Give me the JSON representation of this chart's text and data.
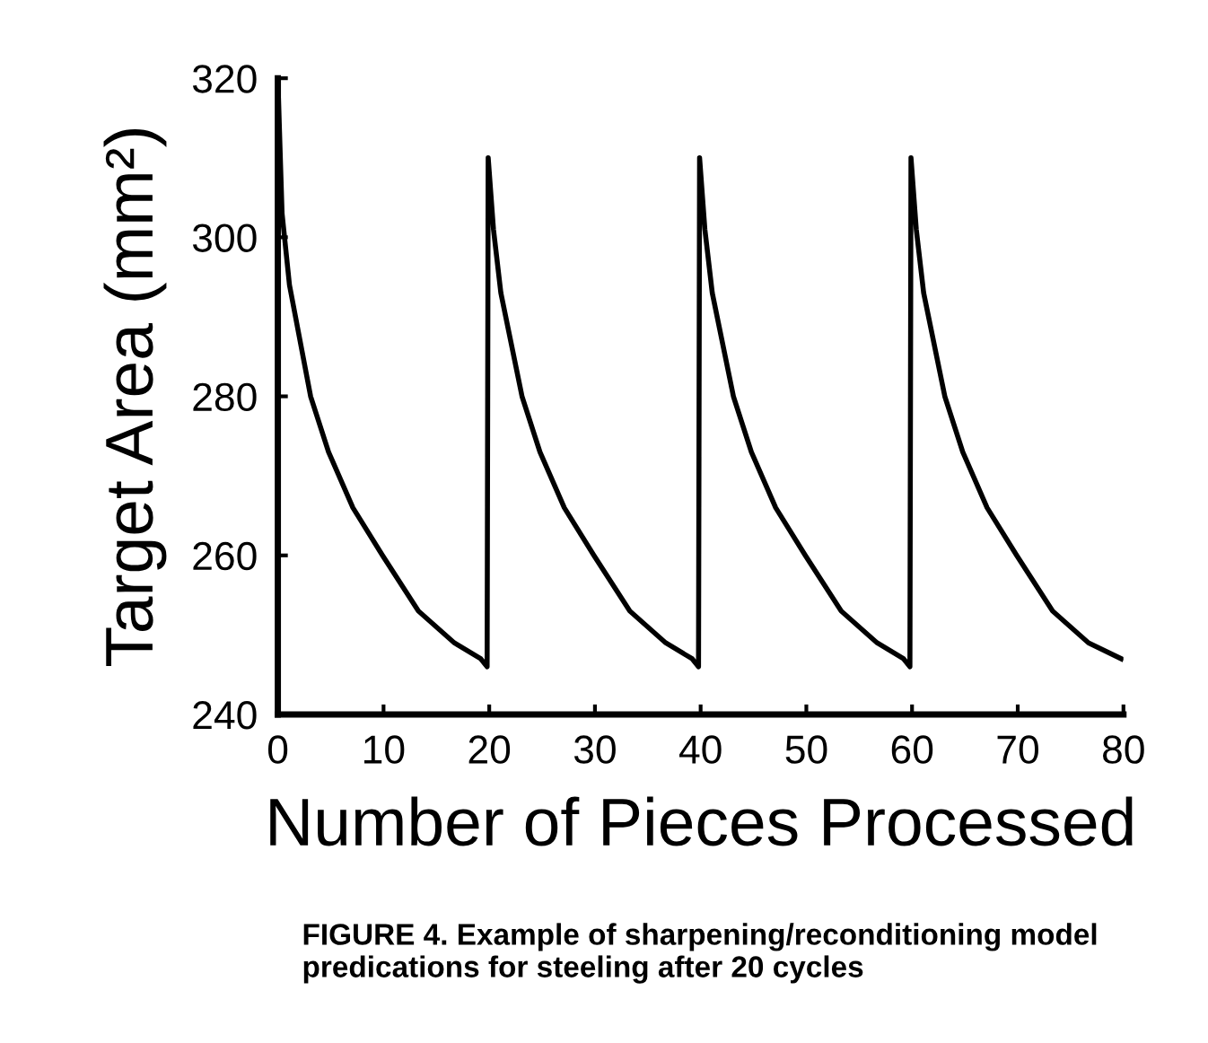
{
  "chart_data": {
    "type": "line",
    "xlabel": "Number of Pieces Processed",
    "ylabel": "Target Area (mm²)",
    "series": [
      {
        "color": "#000000",
        "x": [
          0,
          0.4,
          1.1,
          3.1,
          4.8,
          7.1,
          9.9,
          13.3,
          16.7,
          19.2,
          19.8,
          19.9,
          20.4,
          21.1,
          23.1,
          24.8,
          27.1,
          29.9,
          33.3,
          36.7,
          39.2,
          39.8,
          39.9,
          40.4,
          41.1,
          43.1,
          44.8,
          47.1,
          49.9,
          53.3,
          56.7,
          59.2,
          59.8,
          59.9,
          60.4,
          61.1,
          63.1,
          64.8,
          67.1,
          69.9,
          73.3,
          76.7,
          79.8
        ],
        "values": [
          320,
          303,
          294,
          280,
          273,
          266,
          260,
          253,
          249,
          247,
          246,
          310,
          301,
          293,
          280,
          273,
          266,
          260,
          253,
          249,
          247,
          246,
          310,
          301,
          293,
          280,
          273,
          266,
          260,
          253,
          249,
          247,
          246,
          310,
          301,
          293,
          280,
          273,
          266,
          260,
          253,
          249,
          247
        ]
      }
    ],
    "xlim": [
      0,
      80
    ],
    "xticks": [
      0,
      10,
      20,
      30,
      40,
      50,
      60,
      70,
      80
    ],
    "ylim": [
      240,
      320
    ],
    "yticks": [
      240,
      260,
      280,
      300,
      320
    ],
    "grid": false,
    "legend": false,
    "marker": "none",
    "line_style": "solid",
    "annotations": [
      "FIGURE 4. Example of sharpening/reconditioning model predications for steeling after 20 cycles"
    ]
  }
}
